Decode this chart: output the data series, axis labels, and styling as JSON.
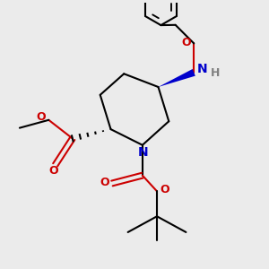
{
  "bg_color": "#ebebeb",
  "bond_color": "#000000",
  "N_color": "#0000cc",
  "O_color": "#cc0000",
  "H_color": "#808080",
  "line_width": 1.5,
  "font_size": 8.5,
  "fig_width": 3.0,
  "fig_height": 3.0,
  "dpi": 100,
  "xlim": [
    0,
    10
  ],
  "ylim": [
    0,
    10
  ]
}
